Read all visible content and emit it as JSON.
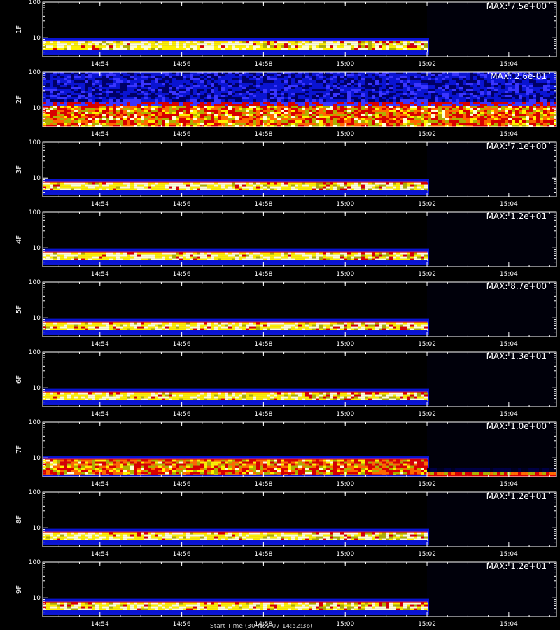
{
  "figure": {
    "background": "#000000",
    "axis_color": "#ffffff",
    "colormap": [
      "#000000",
      "#000066",
      "#0a14d2",
      "#3a35ff",
      "#d80000",
      "#ff6a00",
      "#b0b000",
      "#fff000",
      "#ffffd0"
    ],
    "bottom_caption": "Start Time (30-Nov-07 14:52:36)"
  },
  "chart_data": [
    {
      "type": "heatmap",
      "ylabel": "1F",
      "max_label": "MAX: 7.5e+00",
      "xticks": [
        "14:54",
        "14:56",
        "14:58",
        "15:00",
        "15:02",
        "15:04"
      ],
      "yticks": [
        "10",
        "100"
      ],
      "y_scale": "log",
      "ylim": [
        3,
        100
      ],
      "x_range": [
        "14:52:36",
        "15:05:10"
      ],
      "data_end": "15:02",
      "band": {
        "ylow": 4,
        "yhigh": 8
      },
      "pattern": "narrow-low-band"
    },
    {
      "type": "heatmap",
      "ylabel": "2F",
      "max_label": "MAX: 2.6e-01",
      "xticks": [
        "14:54",
        "14:56",
        "14:58",
        "15:00",
        "15:02",
        "15:04"
      ],
      "yticks": [
        "10",
        "100"
      ],
      "y_scale": "log",
      "ylim": [
        3,
        100
      ],
      "x_range": [
        "14:52:36",
        "15:05:10"
      ],
      "data_end": "15:05:10",
      "band": {
        "ylow": 3,
        "yhigh": 12
      },
      "pattern": "noisy-full-width"
    },
    {
      "type": "heatmap",
      "ylabel": "3F",
      "max_label": "MAX: 7.1e+00",
      "xticks": [
        "14:54",
        "14:56",
        "14:58",
        "15:00",
        "15:02",
        "15:04"
      ],
      "yticks": [
        "10",
        "100"
      ],
      "y_scale": "log",
      "ylim": [
        3,
        100
      ],
      "x_range": [
        "14:52:36",
        "15:05:10"
      ],
      "data_end": "15:02",
      "band": {
        "ylow": 4,
        "yhigh": 7.5
      },
      "pattern": "narrow-low-band"
    },
    {
      "type": "heatmap",
      "ylabel": "4F",
      "max_label": "MAX: 1.2e+01",
      "xticks": [
        "14:54",
        "14:56",
        "14:58",
        "15:00",
        "15:02",
        "15:04"
      ],
      "yticks": [
        "10",
        "100"
      ],
      "y_scale": "log",
      "ylim": [
        3,
        100
      ],
      "x_range": [
        "14:52:36",
        "15:05:10"
      ],
      "data_end": "15:02",
      "band": {
        "ylow": 4,
        "yhigh": 7.5
      },
      "pattern": "narrow-low-band"
    },
    {
      "type": "heatmap",
      "ylabel": "5F",
      "max_label": "MAX: 8.7e+00",
      "xticks": [
        "14:54",
        "14:56",
        "14:58",
        "15:00",
        "15:02",
        "15:04"
      ],
      "yticks": [
        "10",
        "100"
      ],
      "y_scale": "log",
      "ylim": [
        3,
        100
      ],
      "x_range": [
        "14:52:36",
        "15:05:10"
      ],
      "data_end": "15:02",
      "band": {
        "ylow": 4,
        "yhigh": 7.5
      },
      "pattern": "narrow-low-band"
    },
    {
      "type": "heatmap",
      "ylabel": "6F",
      "max_label": "MAX: 1.3e+01",
      "xticks": [
        "14:54",
        "14:56",
        "14:58",
        "15:00",
        "15:02",
        "15:04"
      ],
      "yticks": [
        "10",
        "100"
      ],
      "y_scale": "log",
      "ylim": [
        3,
        100
      ],
      "x_range": [
        "14:52:36",
        "15:05:10"
      ],
      "data_end": "15:02",
      "band": {
        "ylow": 4,
        "yhigh": 7.5
      },
      "pattern": "narrow-low-band"
    },
    {
      "type": "heatmap",
      "ylabel": "7F",
      "max_label": "MAX: 1.0e+00",
      "xticks": [
        "14:54",
        "14:56",
        "14:58",
        "15:00",
        "15:02",
        "15:04"
      ],
      "yticks": [
        "10",
        "100"
      ],
      "y_scale": "log",
      "ylim": [
        3,
        100
      ],
      "x_range": [
        "14:52:36",
        "15:05:10"
      ],
      "data_end": "15:02",
      "band": {
        "ylow": 3,
        "yhigh": 9
      },
      "pattern": "two-bands-with-tail"
    },
    {
      "type": "heatmap",
      "ylabel": "8F",
      "max_label": "MAX: 1.2e+01",
      "xticks": [
        "14:54",
        "14:56",
        "14:58",
        "15:00",
        "15:02",
        "15:04"
      ],
      "yticks": [
        "10",
        "100"
      ],
      "y_scale": "log",
      "ylim": [
        3,
        100
      ],
      "x_range": [
        "14:52:36",
        "15:05:10"
      ],
      "data_end": "15:02",
      "band": {
        "ylow": 4,
        "yhigh": 7.5
      },
      "pattern": "narrow-low-band"
    },
    {
      "type": "heatmap",
      "ylabel": "9F",
      "max_label": "MAX: 1.2e+01",
      "xticks": [
        "14:54",
        "14:56",
        "14:58",
        "15:00",
        "15:02",
        "15:04"
      ],
      "yticks": [
        "10",
        "100"
      ],
      "y_scale": "log",
      "ylim": [
        3,
        100
      ],
      "x_range": [
        "14:52:36",
        "15:05:10"
      ],
      "data_end": "15:02",
      "band": {
        "ylow": 4,
        "yhigh": 7.5
      },
      "pattern": "narrow-low-band"
    }
  ]
}
